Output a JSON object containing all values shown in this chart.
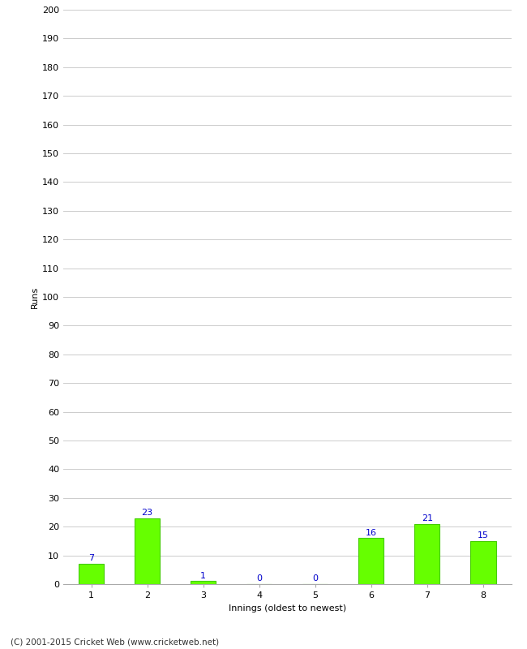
{
  "xlabel": "Innings (oldest to newest)",
  "ylabel": "Runs",
  "categories": [
    "1",
    "2",
    "3",
    "4",
    "5",
    "6",
    "7",
    "8"
  ],
  "values": [
    7,
    23,
    1,
    0,
    0,
    16,
    21,
    15
  ],
  "bar_color": "#66ff00",
  "bar_edge_color": "#44cc00",
  "value_color": "#0000cc",
  "ylim": [
    0,
    200
  ],
  "ytick_step": 10,
  "background_color": "#ffffff",
  "grid_color": "#cccccc",
  "footer": "(C) 2001-2015 Cricket Web (www.cricketweb.net)",
  "bar_width": 0.45,
  "value_fontsize": 8,
  "tick_fontsize": 8,
  "label_fontsize": 8
}
